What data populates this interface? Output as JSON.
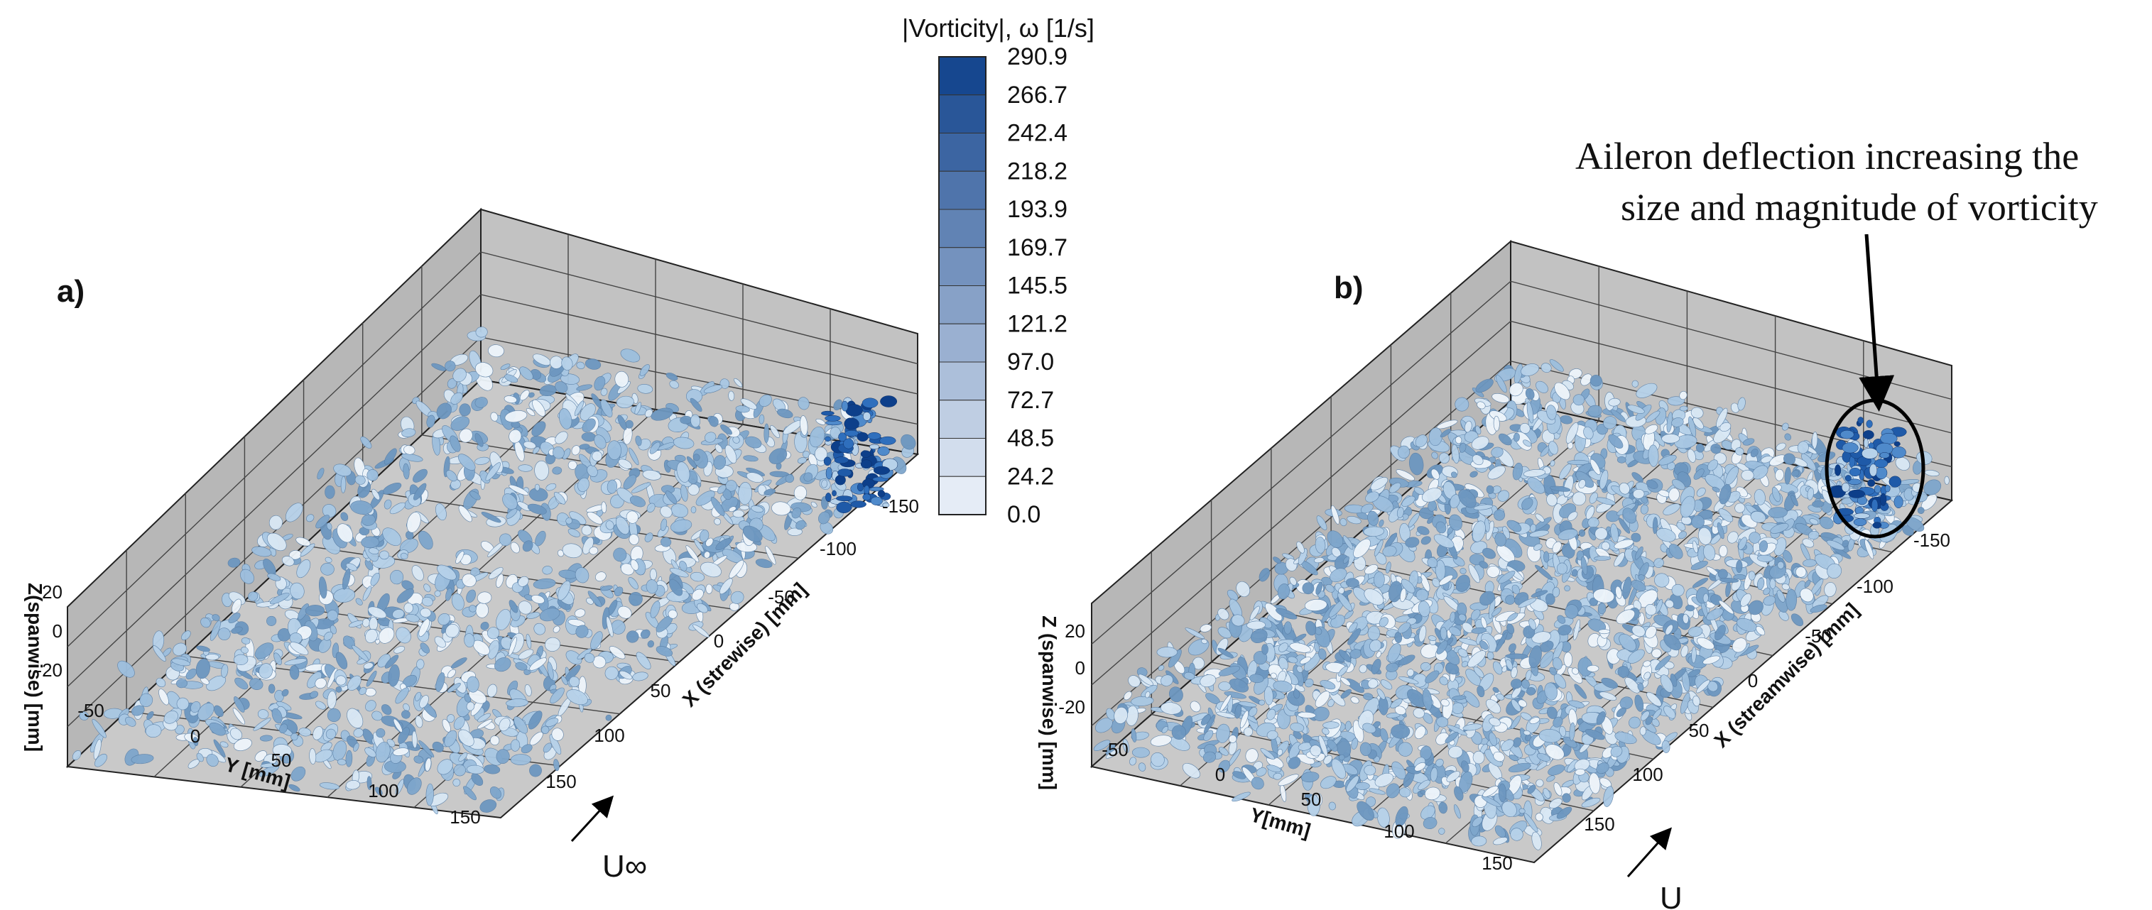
{
  "chart_data": {
    "type": "3d-isosurface",
    "colorbar": {
      "title": "|Vorticity|, ω [1/s]",
      "levels": [
        "290.9",
        "266.7",
        "242.4",
        "218.2",
        "193.9",
        "169.7",
        "145.5",
        "121.2",
        "97.0",
        "72.7",
        "48.5",
        "24.2",
        "0.0"
      ],
      "min": 0.0,
      "max": 290.9,
      "color_low": "#eef3fb",
      "color_high": "#0d3f8a"
    },
    "panels": [
      {
        "label": "a)",
        "x_axis_label": "X (strewise) [mm]",
        "y_axis_label": "Y [mm]",
        "z_axis_label": "Z(spanwise) [mm]",
        "x_ticks": [
          "-150",
          "-100",
          "-50",
          "0",
          "50",
          "100",
          "150"
        ],
        "y_ticks": [
          "-50",
          "0",
          "50",
          "100",
          "150"
        ],
        "z_ticks": [
          "20",
          "0",
          "-20"
        ],
        "flow_label": "U∞",
        "iso_color": "#8fb4d6"
      },
      {
        "label": "b)",
        "x_axis_label": "X (streamwise) [mm]",
        "y_axis_label": "Y[mm]",
        "z_axis_label": "Z (spanwise) [mm]",
        "x_ticks": [
          "-150",
          "-100",
          "-50",
          "0",
          "50",
          "100",
          "150"
        ],
        "y_ticks": [
          "-50",
          "0",
          "50",
          "100",
          "150"
        ],
        "z_ticks": [
          "20",
          "0",
          "-20"
        ],
        "flow_label": "U",
        "iso_color": "#8fb4d6",
        "annotation_lines": [
          "Aileron deflection increasing the",
          "size and magnitude of vorticity"
        ]
      }
    ]
  }
}
